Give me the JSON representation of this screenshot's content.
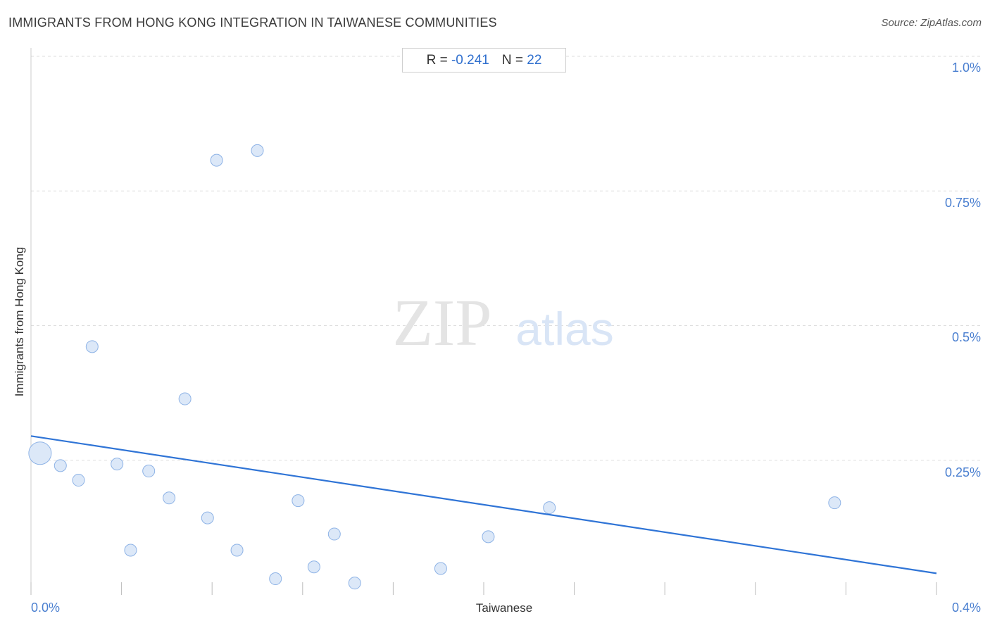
{
  "header": {
    "title": "IMMIGRANTS FROM HONG KONG INTEGRATION IN TAIWANESE COMMUNITIES",
    "source": "Source: ZipAtlas.com"
  },
  "stats": {
    "r_label": "R =",
    "r_value": "-0.241",
    "n_label": "N =",
    "n_value": "22"
  },
  "watermark": {
    "zip": "ZIP",
    "atlas": "atlas"
  },
  "colors": {
    "point_fill": "#dce8f8",
    "point_stroke": "#8eb3e6",
    "trend_line": "#2f74d6",
    "tick_text": "#4a7fd0",
    "grid": "#dddddd"
  },
  "chart_data": {
    "type": "scatter",
    "xlabel": "Taiwanese",
    "ylabel": "Immigrants from Hong Kong",
    "xlim": [
      0,
      0.4
    ],
    "ylim": [
      0,
      1.0
    ],
    "x_tick_labels": [
      "0.0%",
      "0.4%"
    ],
    "y_tick_labels": [
      "1.0%",
      "0.75%",
      "0.5%",
      "0.25%"
    ],
    "y_ticks": [
      1.0,
      0.75,
      0.5,
      0.25
    ],
    "grid": true,
    "trendline": {
      "x": [
        0,
        0.4
      ],
      "y": [
        0.295,
        0.04
      ]
    },
    "points": [
      {
        "x": 0.004,
        "y": 0.263,
        "size": "large"
      },
      {
        "x": 0.013,
        "y": 0.24,
        "size": "normal"
      },
      {
        "x": 0.021,
        "y": 0.213,
        "size": "normal"
      },
      {
        "x": 0.027,
        "y": 0.461,
        "size": "normal"
      },
      {
        "x": 0.038,
        "y": 0.243,
        "size": "normal"
      },
      {
        "x": 0.044,
        "y": 0.083,
        "size": "normal"
      },
      {
        "x": 0.052,
        "y": 0.23,
        "size": "normal"
      },
      {
        "x": 0.061,
        "y": 0.18,
        "size": "normal"
      },
      {
        "x": 0.068,
        "y": 0.364,
        "size": "normal"
      },
      {
        "x": 0.078,
        "y": 0.143,
        "size": "normal"
      },
      {
        "x": 0.082,
        "y": 0.807,
        "size": "normal"
      },
      {
        "x": 0.091,
        "y": 0.083,
        "size": "normal"
      },
      {
        "x": 0.1,
        "y": 0.825,
        "size": "normal"
      },
      {
        "x": 0.108,
        "y": 0.03,
        "size": "normal"
      },
      {
        "x": 0.118,
        "y": 0.175,
        "size": "normal"
      },
      {
        "x": 0.125,
        "y": 0.052,
        "size": "normal"
      },
      {
        "x": 0.134,
        "y": 0.113,
        "size": "normal"
      },
      {
        "x": 0.143,
        "y": 0.022,
        "size": "normal"
      },
      {
        "x": 0.181,
        "y": 0.049,
        "size": "normal"
      },
      {
        "x": 0.202,
        "y": 0.108,
        "size": "normal"
      },
      {
        "x": 0.229,
        "y": 0.162,
        "size": "normal"
      },
      {
        "x": 0.355,
        "y": 0.171,
        "size": "normal"
      }
    ]
  }
}
